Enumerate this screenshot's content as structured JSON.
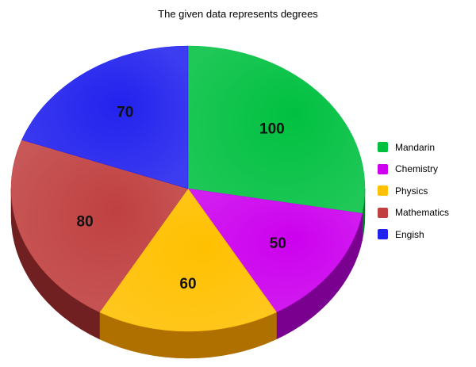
{
  "chart_data": {
    "type": "pie",
    "title": "The given data represents degrees",
    "categories": [
      "Mandarin",
      "Chemistry",
      "Physics",
      "Mathematics",
      "Engish"
    ],
    "values": [
      100,
      50,
      60,
      80,
      70
    ],
    "colors": [
      "#00c040",
      "#cc00ee",
      "#ffc000",
      "#c04040",
      "#2222ee"
    ],
    "side_colors": [
      "#007a28",
      "#7a0090",
      "#b07000",
      "#702020",
      "#13138a"
    ],
    "legend_position": "right",
    "three_d": true
  }
}
